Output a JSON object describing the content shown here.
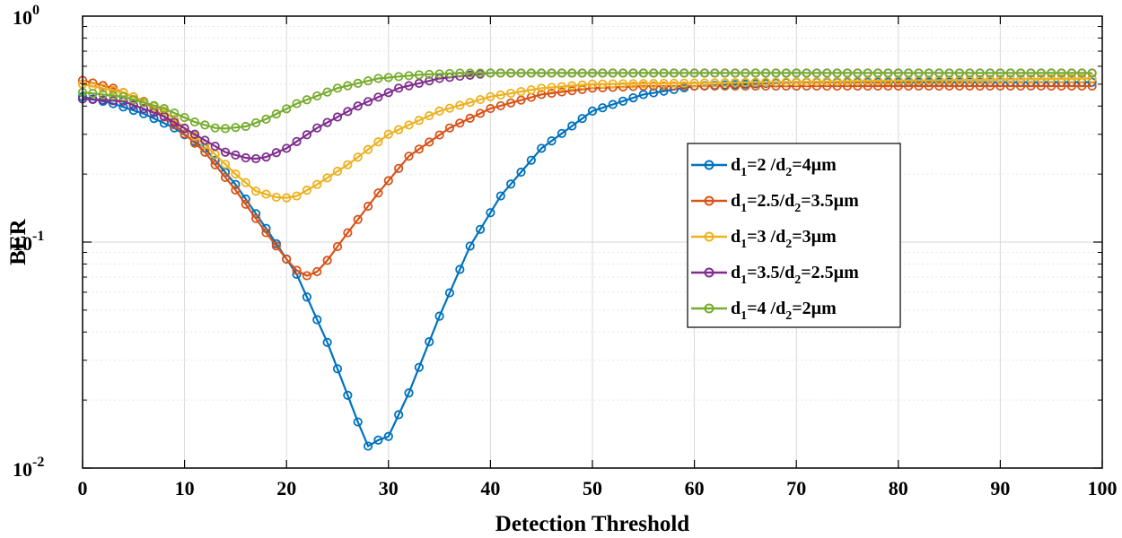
{
  "chart_data": {
    "type": "line",
    "title": "",
    "xlabel": "Detection Threshold",
    "ylabel": "BER",
    "xlim": [
      0,
      100
    ],
    "ylim": [
      0.01,
      1
    ],
    "yscale": "log",
    "grid": true,
    "legend_position": "center-right",
    "x_ticks": [
      "0",
      "10",
      "20",
      "30",
      "40",
      "50",
      "60",
      "70",
      "80",
      "90",
      "100"
    ],
    "y_ticks": [
      {
        "base": "10",
        "exp": "0"
      },
      {
        "base": "10",
        "exp": "-1"
      },
      {
        "base": "10",
        "exp": "-2"
      }
    ],
    "x_step": 1,
    "series": [
      {
        "name": "d1=2 /d2=4µm",
        "legend": {
          "a": "d",
          "a_sub": "1",
          "b": "=2   /d",
          "b_sub": "2",
          "c": "=4µm"
        },
        "color": "#0072BD",
        "key_x": [
          0,
          3,
          6,
          9,
          12,
          15,
          18,
          21,
          24,
          26,
          27,
          28,
          29,
          30,
          32,
          35,
          38,
          41,
          45,
          50,
          55,
          60,
          70,
          99
        ],
        "key_y": [
          0.44,
          0.41,
          0.37,
          0.32,
          0.26,
          0.18,
          0.115,
          0.072,
          0.036,
          0.021,
          0.016,
          0.0125,
          0.0133,
          0.0138,
          0.0215,
          0.047,
          0.096,
          0.16,
          0.26,
          0.38,
          0.45,
          0.49,
          0.51,
          0.51
        ]
      },
      {
        "name": "d1=2.5/d2=3.5µm",
        "legend": {
          "a": "d",
          "a_sub": "1",
          "b": "=2.5/d",
          "b_sub": "2",
          "c": "=3.5µm"
        },
        "color": "#D95319",
        "key_x": [
          0,
          3,
          6,
          9,
          12,
          15,
          18,
          20,
          21,
          22,
          23,
          24,
          26,
          29,
          32,
          36,
          40,
          45,
          50,
          55,
          60,
          99
        ],
        "key_y": [
          0.52,
          0.48,
          0.42,
          0.33,
          0.25,
          0.17,
          0.11,
          0.084,
          0.075,
          0.071,
          0.074,
          0.083,
          0.11,
          0.165,
          0.24,
          0.32,
          0.39,
          0.45,
          0.48,
          0.49,
          0.49,
          0.49
        ]
      },
      {
        "name": "d1=3 /d2=3µm",
        "legend": {
          "a": "d",
          "a_sub": "1",
          "b": "=3   /d",
          "b_sub": "2",
          "c": "=3µm"
        },
        "color": "#EDB120",
        "key_x": [
          0,
          4,
          8,
          12,
          15,
          17,
          19,
          20,
          21,
          23,
          26,
          30,
          35,
          40,
          45,
          50,
          99
        ],
        "key_y": [
          0.5,
          0.46,
          0.38,
          0.27,
          0.2,
          0.168,
          0.158,
          0.157,
          0.16,
          0.18,
          0.22,
          0.3,
          0.38,
          0.44,
          0.48,
          0.5,
          0.53
        ]
      },
      {
        "name": "d1=3.5/d2=2.5µm",
        "legend": {
          "a": "d",
          "a_sub": "1",
          "b": "=3.5/d",
          "b_sub": "2",
          "c": "=2.5µm"
        },
        "color": "#7E2F8E",
        "key_x": [
          0,
          4,
          8,
          11,
          14,
          16,
          17,
          18,
          20,
          23,
          27,
          31,
          35,
          40,
          45,
          99
        ],
        "key_y": [
          0.43,
          0.42,
          0.36,
          0.3,
          0.25,
          0.236,
          0.234,
          0.238,
          0.26,
          0.32,
          0.4,
          0.48,
          0.53,
          0.56,
          0.56,
          0.56
        ]
      },
      {
        "name": "d1=4 /d2=2µm",
        "legend": {
          "a": "d",
          "a_sub": "1",
          "b": "=4   /d",
          "b_sub": "2",
          "c": "=2µm"
        },
        "color": "#77AC30",
        "key_x": [
          0,
          4,
          8,
          11,
          13,
          14,
          16,
          18,
          21,
          25,
          29,
          33,
          37,
          42,
          99
        ],
        "key_y": [
          0.46,
          0.44,
          0.39,
          0.34,
          0.32,
          0.318,
          0.325,
          0.35,
          0.41,
          0.48,
          0.53,
          0.55,
          0.56,
          0.56,
          0.56
        ]
      }
    ]
  }
}
